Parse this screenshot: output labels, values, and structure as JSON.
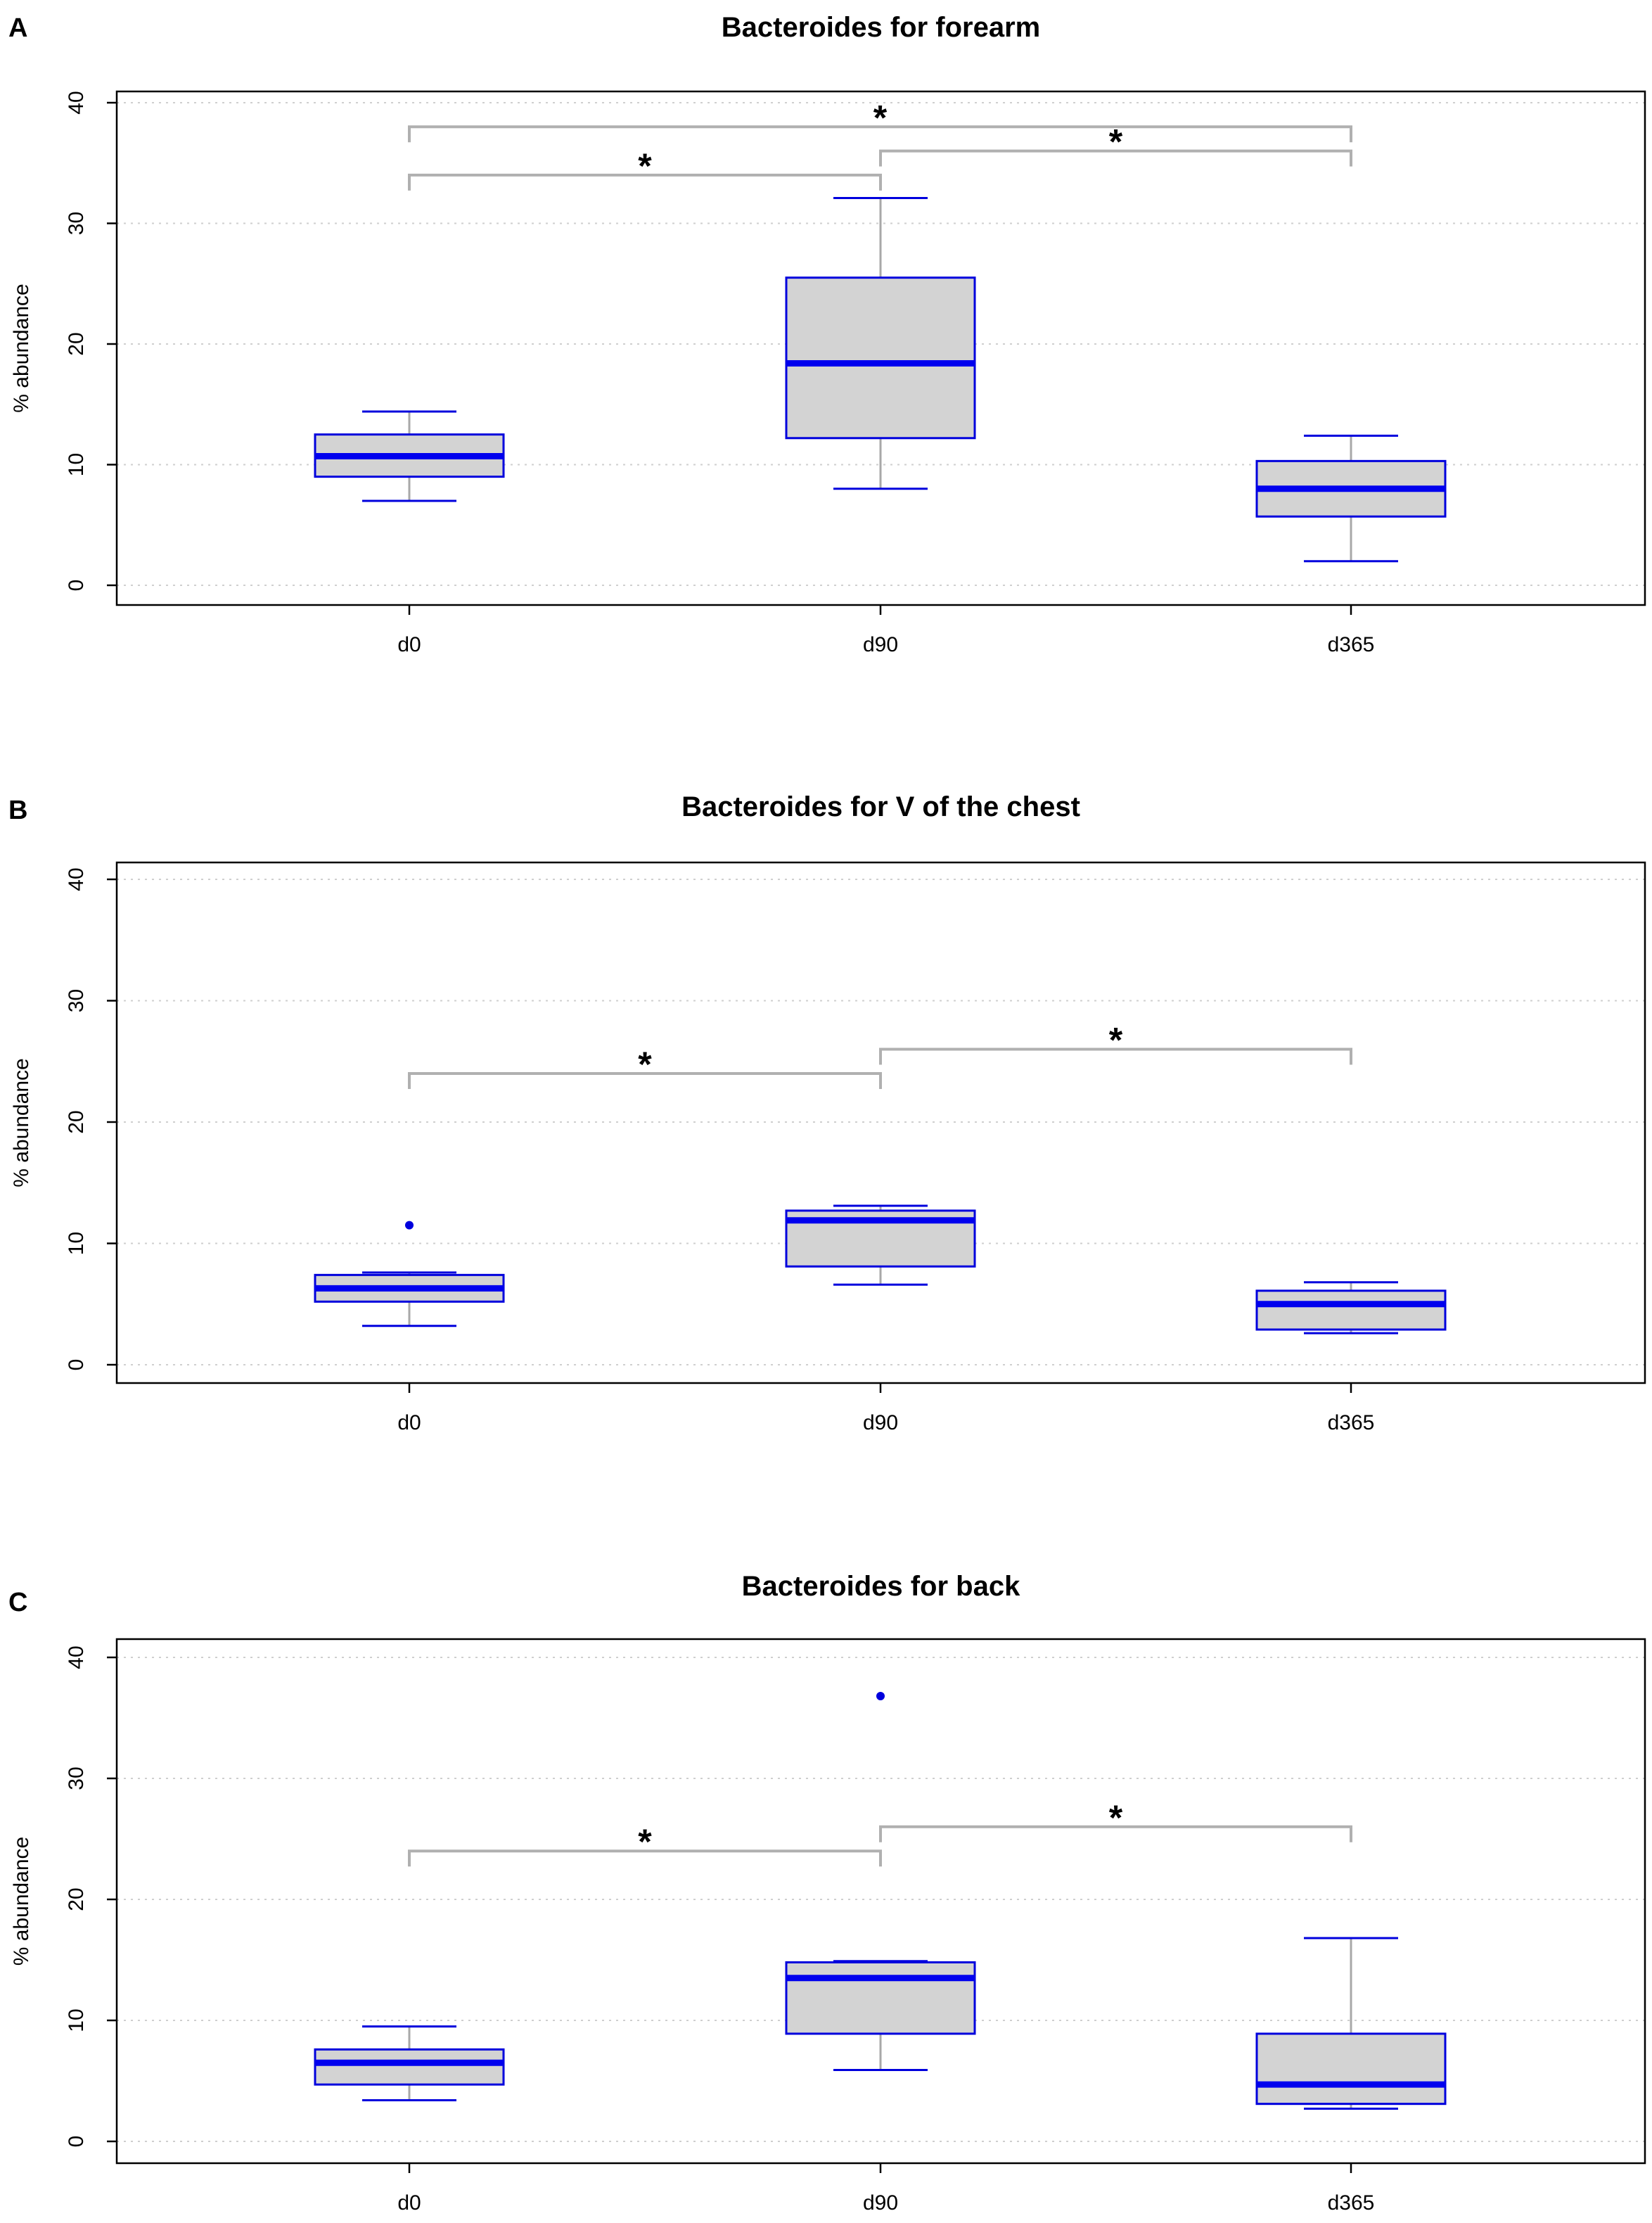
{
  "colors": {
    "box_fill": "#d3d3d3",
    "box_border": "#0000dd",
    "median": "#0000ee",
    "whisker": "#a8a8a8",
    "grid": "#cfcfcf",
    "bracket": "#b0b0b0",
    "axis": "#000000"
  },
  "chart_data": [
    {
      "type": "box",
      "panel": "A",
      "title": "Bacteroides for forearm",
      "xlabel": "",
      "ylabel": "% abundance",
      "ylim": [
        0,
        40
      ],
      "yticks": [
        0,
        10,
        20,
        30,
        40
      ],
      "grid": true,
      "categories": [
        "d0",
        "d90",
        "d365"
      ],
      "boxes": [
        {
          "min": 7.0,
          "q1": 9.0,
          "median": 10.7,
          "q3": 12.5,
          "max": 14.4,
          "outliers": []
        },
        {
          "min": 8.0,
          "q1": 12.2,
          "median": 18.4,
          "q3": 25.5,
          "max": 32.1,
          "outliers": []
        },
        {
          "min": 2.0,
          "q1": 5.7,
          "median": 8.0,
          "q3": 10.3,
          "max": 12.4,
          "outliers": []
        }
      ],
      "significance": [
        {
          "from": 0,
          "to": 1,
          "y": 34,
          "label": "*"
        },
        {
          "from": 1,
          "to": 2,
          "y": 36,
          "label": "*"
        },
        {
          "from": 0,
          "to": 2,
          "y": 38,
          "label": "*"
        }
      ]
    },
    {
      "type": "box",
      "panel": "B",
      "title": "Bacteroides for V of the chest",
      "xlabel": "",
      "ylabel": "% abundance",
      "ylim": [
        0,
        40
      ],
      "yticks": [
        0,
        10,
        20,
        30,
        40
      ],
      "grid": true,
      "categories": [
        "d0",
        "d90",
        "d365"
      ],
      "boxes": [
        {
          "min": 3.2,
          "q1": 5.2,
          "median": 6.3,
          "q3": 7.4,
          "max": 7.6,
          "outliers": [
            11.5
          ]
        },
        {
          "min": 6.6,
          "q1": 8.1,
          "median": 11.9,
          "q3": 12.7,
          "max": 13.1,
          "outliers": []
        },
        {
          "min": 2.6,
          "q1": 2.9,
          "median": 5.0,
          "q3": 6.1,
          "max": 6.8,
          "outliers": []
        }
      ],
      "significance": [
        {
          "from": 0,
          "to": 1,
          "y": 24,
          "label": "*"
        },
        {
          "from": 1,
          "to": 2,
          "y": 26,
          "label": "*"
        }
      ]
    },
    {
      "type": "box",
      "panel": "C",
      "title": "Bacteroides for back",
      "xlabel": "",
      "ylabel": "% abundance",
      "ylim": [
        0,
        40
      ],
      "yticks": [
        0,
        10,
        20,
        30,
        40
      ],
      "grid": true,
      "categories": [
        "d0",
        "d90",
        "d365"
      ],
      "boxes": [
        {
          "min": 3.4,
          "q1": 4.7,
          "median": 6.5,
          "q3": 7.6,
          "max": 9.5,
          "outliers": []
        },
        {
          "min": 5.9,
          "q1": 8.9,
          "median": 13.5,
          "q3": 14.8,
          "max": 14.9,
          "outliers": [
            36.8
          ]
        },
        {
          "min": 2.7,
          "q1": 3.1,
          "median": 4.7,
          "q3": 8.9,
          "max": 16.8,
          "outliers": []
        }
      ],
      "significance": [
        {
          "from": 0,
          "to": 1,
          "y": 24,
          "label": "*"
        },
        {
          "from": 1,
          "to": 2,
          "y": 26,
          "label": "*"
        }
      ]
    }
  ]
}
